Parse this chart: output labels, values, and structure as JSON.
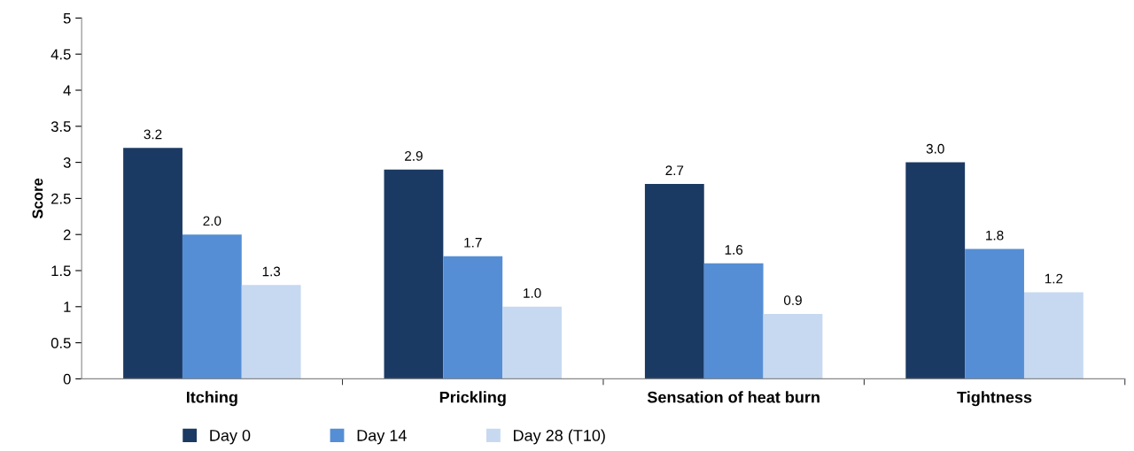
{
  "chart_data": {
    "type": "bar",
    "ylabel": "Score",
    "categories": [
      "Itching",
      "Prickling",
      "Sensation of heat burn",
      "Tightness"
    ],
    "series": [
      {
        "name": "Day 0",
        "color": "#1b3a63",
        "values": [
          3.2,
          2.9,
          2.7,
          3.0
        ],
        "value_labels": [
          "3.2",
          "2.9",
          "2.7",
          "3.0"
        ]
      },
      {
        "name": "Day 14",
        "color": "#558ed5",
        "values": [
          2.0,
          1.7,
          1.6,
          1.8
        ],
        "value_labels": [
          "2.0",
          "1.7",
          "1.6",
          "1.8"
        ]
      },
      {
        "name": "Day 28 (T10)",
        "color": "#c6d9f1",
        "values": [
          1.3,
          1.0,
          0.9,
          1.2
        ],
        "value_labels": [
          "1.3",
          "1.0",
          "0.9",
          "1.2"
        ]
      }
    ],
    "ylim": [
      0,
      5
    ],
    "yticks": [
      0,
      0.5,
      1,
      1.5,
      2,
      2.5,
      3,
      3.5,
      4,
      4.5,
      5
    ],
    "grid": false,
    "legend": "bottom"
  }
}
